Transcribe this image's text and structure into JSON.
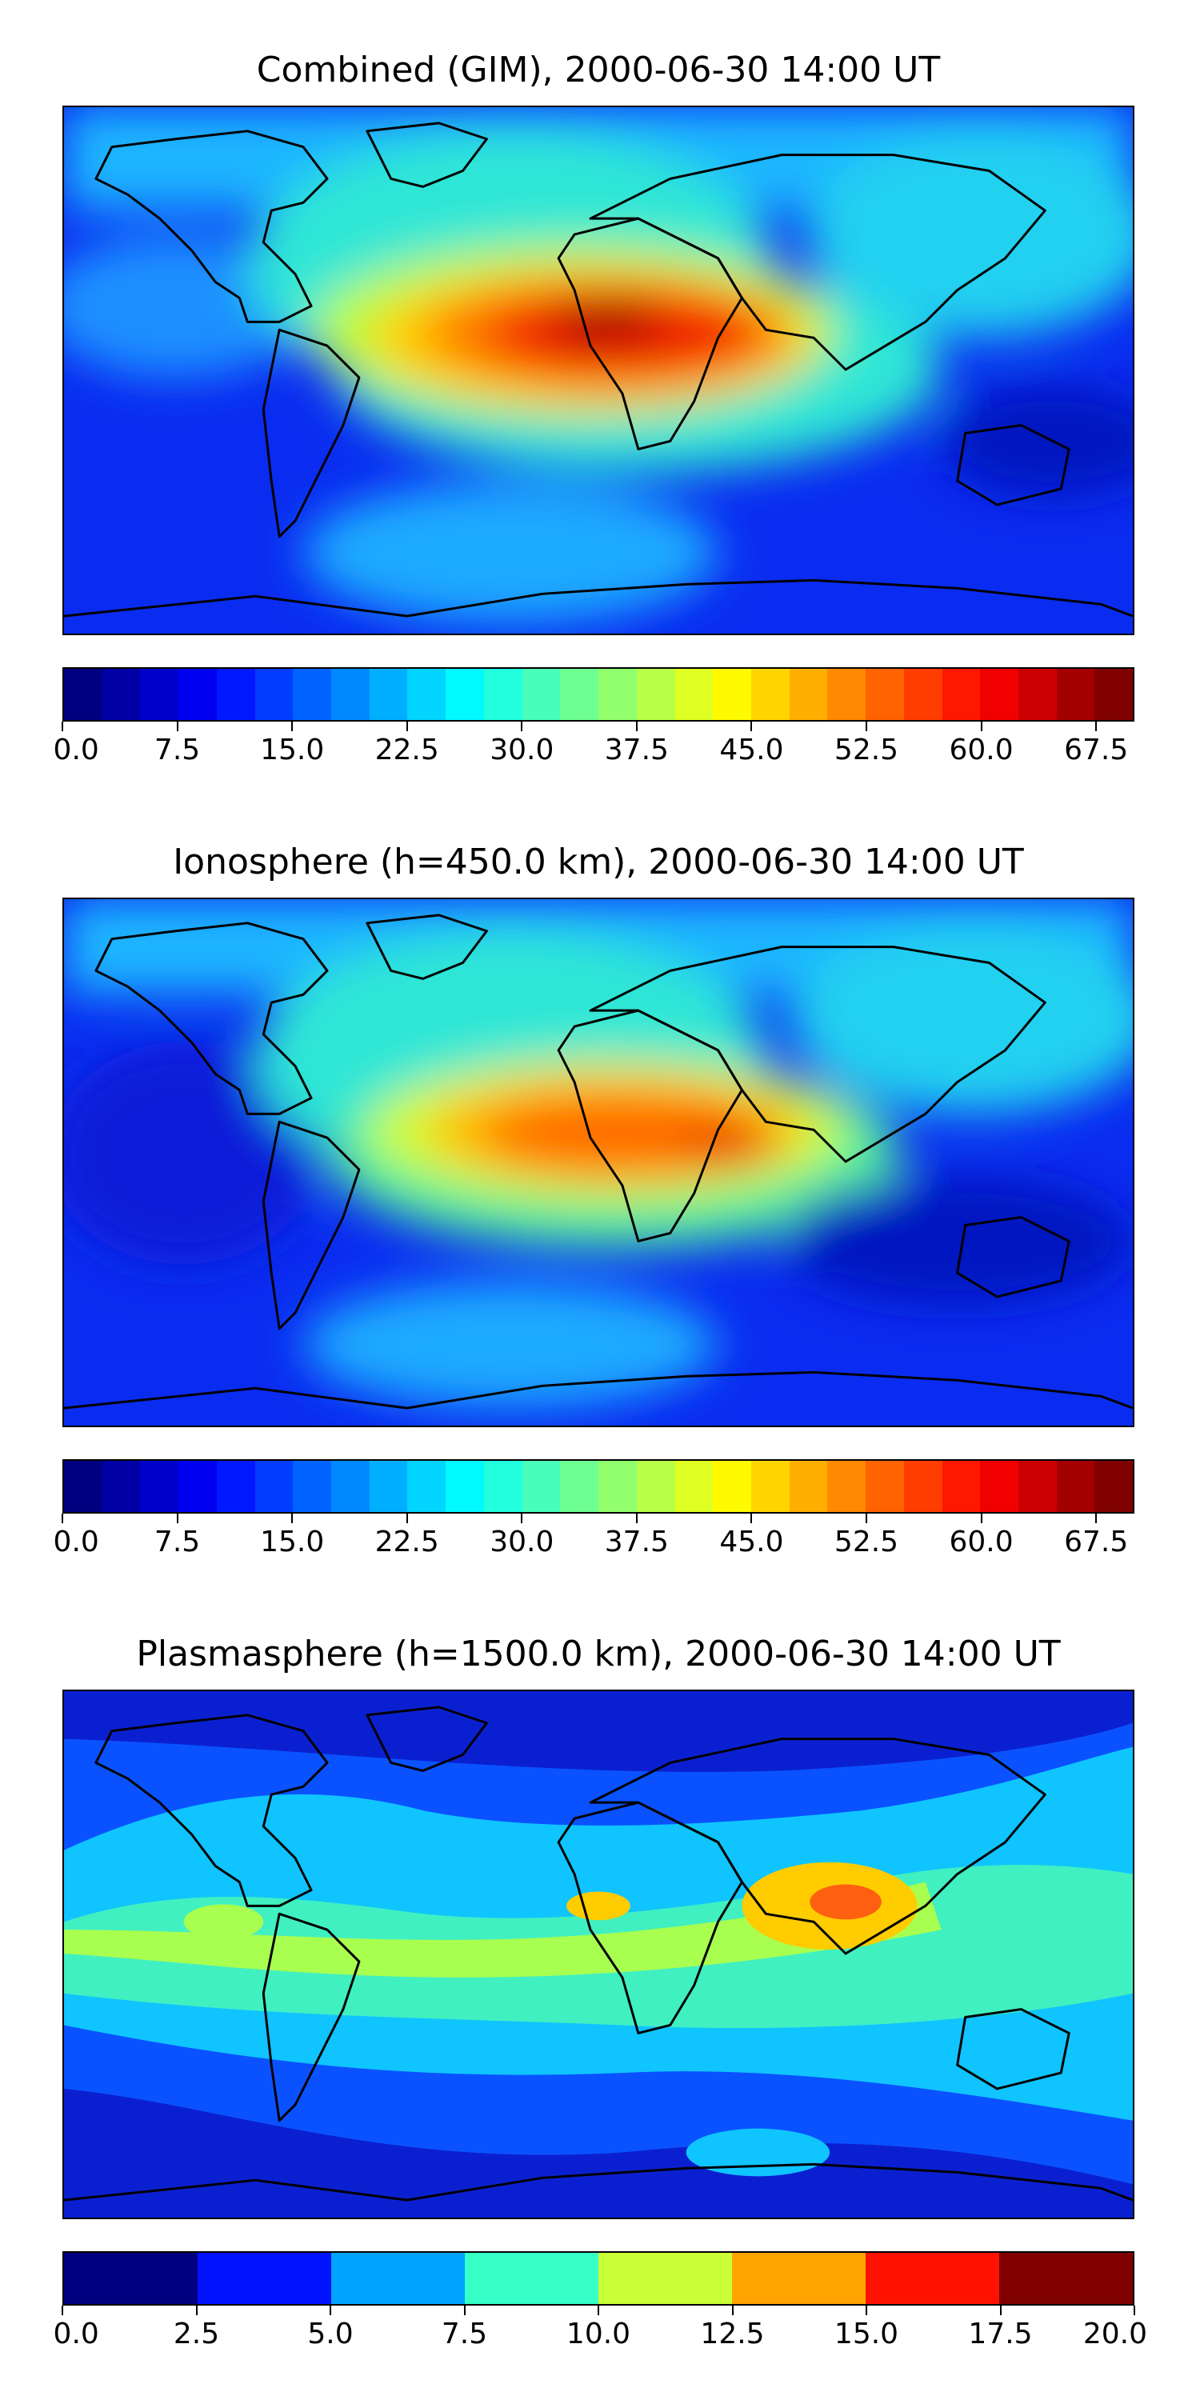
{
  "panels": [
    {
      "title": "Combined (GIM), 2000-06-30 14:00 UT",
      "colormap": "jet",
      "colorbar": {
        "levels": 28,
        "min": 0.0,
        "max": 70.0,
        "tick_values": [
          0.0,
          7.5,
          15.0,
          22.5,
          30.0,
          37.5,
          45.0,
          52.5,
          60.0,
          67.5
        ],
        "tick_labels": [
          "0.0",
          "7.5",
          "15.0",
          "22.5",
          "30.0",
          "37.5",
          "45.0",
          "52.5",
          "60.0",
          "67.5"
        ]
      }
    },
    {
      "title": "Ionosphere  (h=450.0 km), 2000-06-30 14:00 UT",
      "colormap": "jet",
      "colorbar": {
        "levels": 28,
        "min": 0.0,
        "max": 70.0,
        "tick_values": [
          0.0,
          7.5,
          15.0,
          22.5,
          30.0,
          37.5,
          45.0,
          52.5,
          60.0,
          67.5
        ],
        "tick_labels": [
          "0.0",
          "7.5",
          "15.0",
          "22.5",
          "30.0",
          "37.5",
          "45.0",
          "52.5",
          "60.0",
          "67.5"
        ]
      }
    },
    {
      "title": "Plasmasphere (h=1500.0 km), 2000-06-30 14:00 UT",
      "colormap": "jet",
      "colorbar": {
        "levels": 8,
        "min": 0.0,
        "max": 20.0,
        "tick_values": [
          0.0,
          2.5,
          5.0,
          7.5,
          10.0,
          12.5,
          15.0,
          17.5,
          20.0
        ],
        "tick_labels": [
          "0.0",
          "2.5",
          "5.0",
          "7.5",
          "10.0",
          "12.5",
          "15.0",
          "17.5",
          "20.0"
        ]
      }
    }
  ]
}
